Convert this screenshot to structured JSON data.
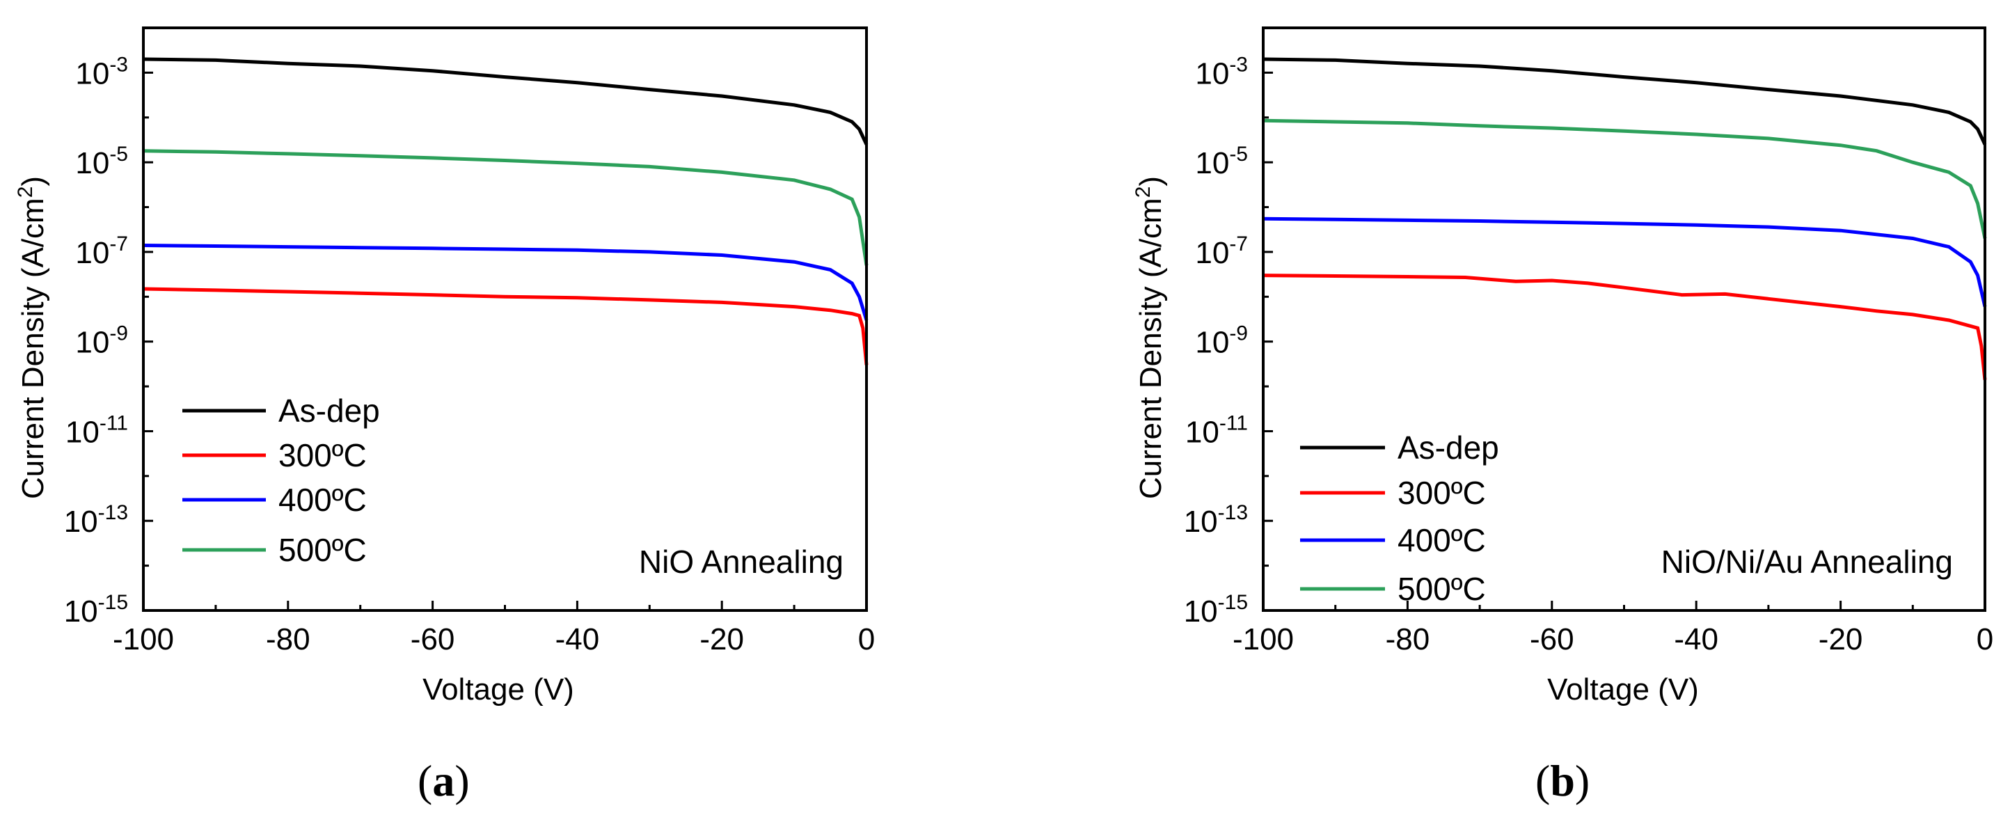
{
  "panels": [
    {
      "label": "a"
    },
    {
      "label": "b"
    }
  ],
  "chart_data": [
    {
      "type": "line",
      "scale_y": "log",
      "xlabel": "Voltage (V)",
      "ylabel_main": "Current Density (A/cm",
      "ylabel_sup": "2",
      "ylabel_end": ")",
      "xlim": [
        -100,
        0
      ],
      "ylim_exp": [
        -15,
        -2
      ],
      "xticks": [
        "-100",
        "-80",
        "-60",
        "-40",
        "-20",
        "0"
      ],
      "yticks": [
        {
          "base": "10",
          "exp": "-3"
        },
        {
          "base": "10",
          "exp": "-5"
        },
        {
          "base": "10",
          "exp": "-7"
        },
        {
          "base": "10",
          "exp": "-9"
        },
        {
          "base": "10",
          "exp": "-11"
        },
        {
          "base": "10",
          "exp": "-13"
        },
        {
          "base": "10",
          "exp": "-15"
        }
      ],
      "annotation": "NiO Annealing",
      "legend_position": "lower-left",
      "series": [
        {
          "name": "As-dep",
          "color": "#000000",
          "x": [
            -100,
            -90,
            -80,
            -70,
            -60,
            -50,
            -40,
            -30,
            -20,
            -10,
            -5,
            -2,
            -1,
            0
          ],
          "y": [
            0.002,
            0.0019,
            0.0016,
            0.0014,
            0.0011,
            0.0008,
            0.0006,
            0.00042,
            0.0003,
            0.00019,
            0.00013,
            8e-05,
            5.5e-05,
            2.5e-05
          ]
        },
        {
          "name": "300ºC",
          "color": "#ff0000",
          "x": [
            -100,
            -90,
            -80,
            -70,
            -60,
            -50,
            -40,
            -30,
            -20,
            -10,
            -5,
            -2,
            -1,
            -0.5,
            0
          ],
          "y": [
            1.5e-08,
            1.4e-08,
            1.3e-08,
            1.2e-08,
            1.1e-08,
            1e-08,
            9.5e-09,
            8.5e-09,
            7.5e-09,
            6e-09,
            5e-09,
            4.2e-09,
            3.8e-09,
            2e-09,
            3e-10
          ]
        },
        {
          "name": "400ºC",
          "color": "#0000ff",
          "x": [
            -100,
            -90,
            -80,
            -70,
            -60,
            -50,
            -40,
            -30,
            -20,
            -10,
            -5,
            -2,
            -1,
            0
          ],
          "y": [
            1.4e-07,
            1.35e-07,
            1.3e-07,
            1.25e-07,
            1.2e-07,
            1.15e-07,
            1.1e-07,
            1e-07,
            8.5e-08,
            6e-08,
            4e-08,
            2e-08,
            1e-08,
            3e-09
          ]
        },
        {
          "name": "500ºC",
          "color": "#2ca05a",
          "x": [
            -100,
            -90,
            -80,
            -70,
            -60,
            -50,
            -40,
            -30,
            -20,
            -10,
            -5,
            -2,
            -1,
            0
          ],
          "y": [
            1.8e-05,
            1.7e-05,
            1.55e-05,
            1.4e-05,
            1.25e-05,
            1.1e-05,
            9.5e-06,
            8e-06,
            6e-06,
            4e-06,
            2.5e-06,
            1.5e-06,
            6e-07,
            5e-08
          ]
        }
      ]
    },
    {
      "type": "line",
      "scale_y": "log",
      "xlabel": "Voltage (V)",
      "ylabel_main": "Current Density (A/cm",
      "ylabel_sup": "2",
      "ylabel_end": ")",
      "xlim": [
        -100,
        0
      ],
      "ylim_exp": [
        -15,
        -2
      ],
      "xticks": [
        "-100",
        "-80",
        "-60",
        "-40",
        "-20",
        "0"
      ],
      "yticks": [
        {
          "base": "10",
          "exp": "-3"
        },
        {
          "base": "10",
          "exp": "-5"
        },
        {
          "base": "10",
          "exp": "-7"
        },
        {
          "base": "10",
          "exp": "-9"
        },
        {
          "base": "10",
          "exp": "-11"
        },
        {
          "base": "10",
          "exp": "-13"
        },
        {
          "base": "10",
          "exp": "-15"
        }
      ],
      "annotation": "NiO/Ni/Au Annealing",
      "legend_position": "lower-left",
      "series": [
        {
          "name": "As-dep",
          "color": "#000000",
          "x": [
            -100,
            -90,
            -80,
            -70,
            -60,
            -50,
            -40,
            -30,
            -20,
            -10,
            -5,
            -2,
            -1,
            0
          ],
          "y": [
            0.002,
            0.0019,
            0.0016,
            0.0014,
            0.0011,
            0.0008,
            0.0006,
            0.00042,
            0.0003,
            0.00019,
            0.00013,
            8e-05,
            5.5e-05,
            2.5e-05
          ]
        },
        {
          "name": "300ºC",
          "color": "#ff0000",
          "x": [
            -100,
            -90,
            -80,
            -72,
            -65,
            -60,
            -55,
            -50,
            -42,
            -36,
            -30,
            -20,
            -15,
            -10,
            -5,
            -1,
            -0.5,
            0
          ],
          "y": [
            3e-08,
            2.9e-08,
            2.8e-08,
            2.7e-08,
            2.2e-08,
            2.3e-08,
            2e-08,
            1.6e-08,
            1.1e-08,
            1.15e-08,
            9e-09,
            6e-09,
            4.8e-09,
            4e-09,
            3e-09,
            2e-09,
            8e-10,
            1.4e-10
          ]
        },
        {
          "name": "400ºC",
          "color": "#0000ff",
          "x": [
            -100,
            -90,
            -80,
            -70,
            -60,
            -50,
            -40,
            -30,
            -20,
            -10,
            -5,
            -2,
            -1,
            0
          ],
          "y": [
            5.5e-07,
            5.3e-07,
            5.1e-07,
            4.9e-07,
            4.6e-07,
            4.3e-07,
            4e-07,
            3.6e-07,
            3e-07,
            2e-07,
            1.3e-07,
            6e-08,
            3e-08,
            6e-09
          ]
        },
        {
          "name": "500ºC",
          "color": "#2ca05a",
          "x": [
            -100,
            -90,
            -80,
            -70,
            -60,
            -50,
            -40,
            -30,
            -20,
            -15,
            -10,
            -5,
            -2,
            -1,
            0
          ],
          "y": [
            8.5e-05,
            8e-05,
            7.5e-05,
            6.5e-05,
            5.8e-05,
            5e-05,
            4.2e-05,
            3.4e-05,
            2.4e-05,
            1.8e-05,
            1e-05,
            6e-06,
            3e-06,
            1.2e-06,
            2e-07
          ]
        }
      ]
    }
  ]
}
